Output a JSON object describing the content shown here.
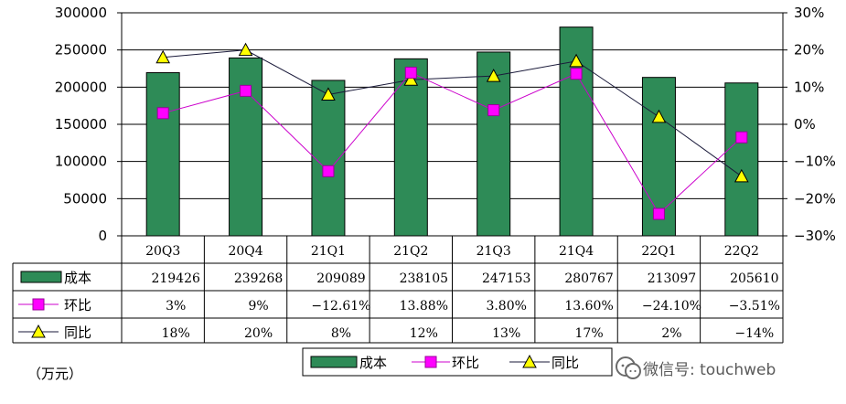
{
  "chart_data": {
    "type": "bar",
    "categories": [
      "20Q3",
      "20Q4",
      "21Q1",
      "21Q2",
      "21Q3",
      "21Q4",
      "22Q1",
      "22Q2"
    ],
    "series": [
      {
        "name": "成本",
        "type": "bar",
        "axis": "left",
        "values": [
          219426,
          239268,
          209089,
          238105,
          247153,
          280767,
          213097,
          205610
        ],
        "labels": [
          "219426",
          "239268",
          "209089",
          "238105",
          "247153",
          "280767",
          "213097",
          "205610"
        ]
      },
      {
        "name": "环比",
        "type": "line",
        "axis": "right",
        "values": [
          3,
          9,
          -12.61,
          13.88,
          3.8,
          13.6,
          -24.1,
          -3.51
        ],
        "labels": [
          "3%",
          "9%",
          "-12.61%",
          "13.88%",
          "3.80%",
          "13.60%",
          "-24.10%",
          "-3.51%"
        ]
      },
      {
        "name": "同比",
        "type": "line",
        "axis": "right",
        "values": [
          18,
          20,
          8,
          12,
          13,
          17,
          2,
          -14
        ],
        "labels": [
          "18%",
          "20%",
          "8%",
          "12%",
          "13%",
          "17%",
          "2%",
          "-14%"
        ]
      }
    ],
    "y_left": {
      "min": 0,
      "max": 300000,
      "ticks": [
        "0",
        "50000",
        "100000",
        "150000",
        "200000",
        "250000",
        "300000"
      ]
    },
    "y_right": {
      "min": -30,
      "max": 30,
      "ticks": [
        "-30%",
        "-20%",
        "-10%",
        "0%",
        "10%",
        "20%",
        "30%"
      ]
    },
    "unit_label": "（万元）",
    "legend": [
      "成本",
      "环比",
      "同比"
    ],
    "legend_position": "bottom"
  },
  "colors": {
    "bar": "#2E8B57",
    "mom": "#CC00CC",
    "mom_marker": "#FF00FF",
    "yoy": "#1a1a3a",
    "yoy_marker": "#FFFF00"
  },
  "watermark": {
    "text": "微信号: touchweb",
    "icon": "wechat-icon"
  }
}
